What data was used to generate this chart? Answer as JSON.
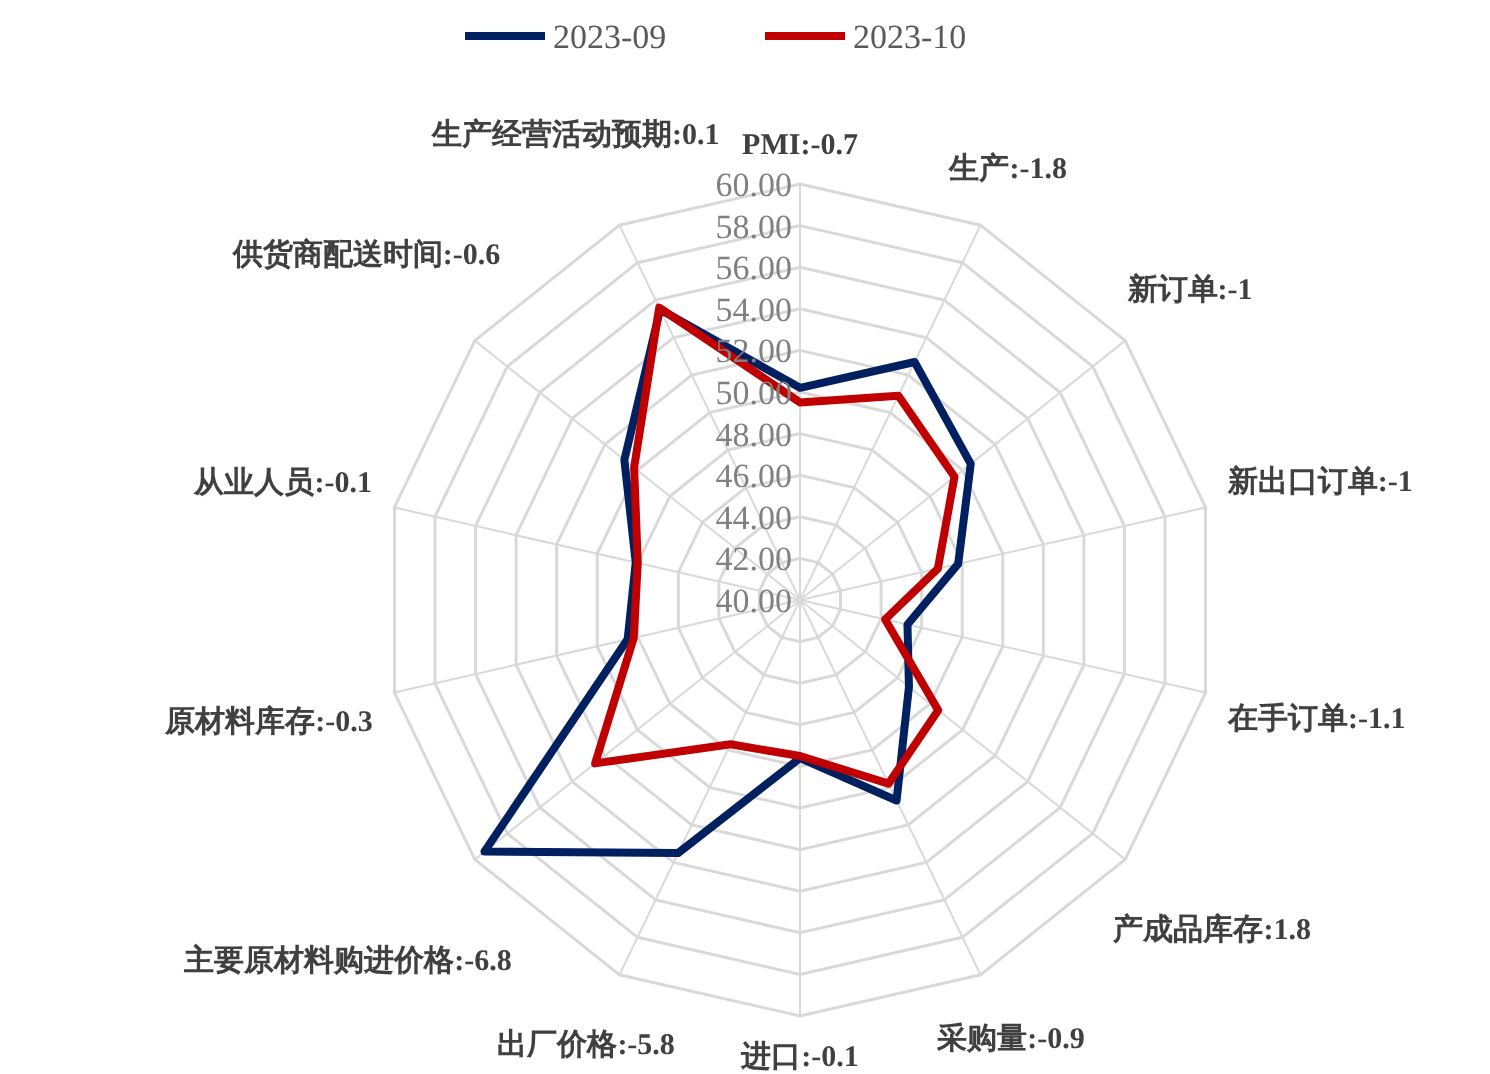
{
  "chart_data": {
    "type": "radar",
    "categories": [
      "PMI:-0.7",
      "生产:-1.8",
      "新订单:-1",
      "新出口订单:-1",
      "在手订单:-1.1",
      "产成品库存:1.8",
      "采购量:-0.9",
      "进口:-0.1",
      "出厂价格:-5.8",
      "主要原材料购进价格:-6.8",
      "原材料库存:-0.3",
      "从业人员:-0.1",
      "供货商配送时间:-0.6",
      "生产经营活动预期:0.1"
    ],
    "series": [
      {
        "name": "2023-09",
        "color": "#002060",
        "values": [
          50.2,
          52.7,
          50.5,
          47.8,
          45.3,
          46.7,
          50.7,
          47.6,
          53.5,
          59.4,
          48.5,
          48.1,
          50.8,
          55.5
        ]
      },
      {
        "name": "2023-10",
        "color": "#c00000",
        "values": [
          49.5,
          50.9,
          49.5,
          46.8,
          44.2,
          48.5,
          49.8,
          47.5,
          47.7,
          52.6,
          48.2,
          48.0,
          50.2,
          55.6
        ]
      }
    ],
    "ylim": [
      40,
      60
    ],
    "yticks": [
      {
        "value": 40,
        "label": "40.00"
      },
      {
        "value": 42,
        "label": "42.00"
      },
      {
        "value": 44,
        "label": "44.00"
      },
      {
        "value": 46,
        "label": "46.00"
      },
      {
        "value": 48,
        "label": "48.00"
      },
      {
        "value": 50,
        "label": "50.00"
      },
      {
        "value": 52,
        "label": "52.00"
      },
      {
        "value": 54,
        "label": "54.00"
      },
      {
        "value": 56,
        "label": "56.00"
      },
      {
        "value": 58,
        "label": "58.00"
      },
      {
        "value": 60,
        "label": "60.00"
      }
    ],
    "legend": "top",
    "grid": true
  }
}
